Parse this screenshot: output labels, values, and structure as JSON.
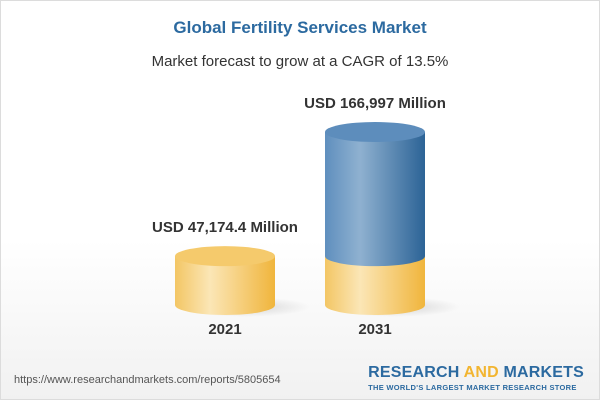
{
  "title": "Global Fertility Services Market",
  "subtitle": "Market forecast to grow at a CAGR of 13.5%",
  "chart_data": {
    "type": "bar",
    "style": "3d-cylinder",
    "categories": [
      "2021",
      "2031"
    ],
    "values": [
      47174.4,
      166997
    ],
    "data_labels": [
      "USD 47,174.4 Million",
      "USD 166,997 Million"
    ],
    "unit": "USD Million",
    "colors": {
      "base": "#f2c55c",
      "growth": "#3f7bb0"
    },
    "grid": false
  },
  "footer": {
    "url": "https://www.researchandmarkets.com/reports/5805654",
    "logo_part1": "RESEARCH ",
    "logo_part2": "AND",
    "logo_part3": " MARKETS",
    "tagline": "THE WORLD'S LARGEST MARKET RESEARCH STORE"
  }
}
